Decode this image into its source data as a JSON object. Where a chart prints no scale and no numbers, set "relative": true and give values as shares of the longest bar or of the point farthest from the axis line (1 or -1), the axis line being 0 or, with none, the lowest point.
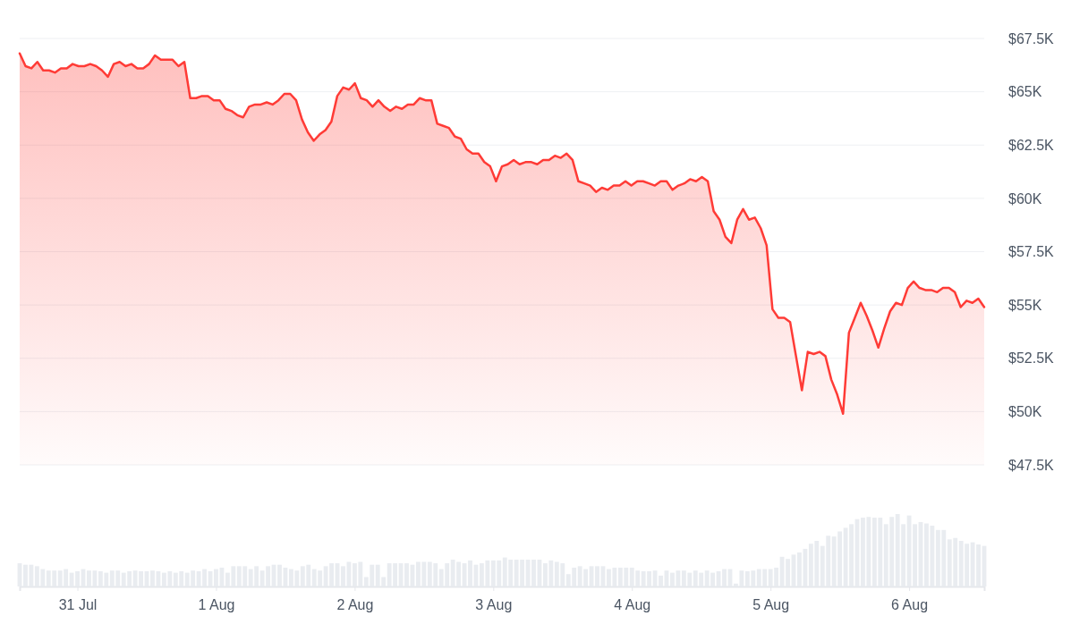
{
  "chart_data": [
    {
      "type": "area",
      "color": "#ff3b36",
      "categories": [
        null,
        null,
        null,
        null,
        null,
        null,
        null,
        null,
        null,
        null,
        null,
        null,
        null,
        null,
        null,
        null,
        null,
        null,
        null,
        null,
        null,
        null,
        null,
        null,
        null,
        null,
        null,
        null,
        null,
        null,
        null,
        null,
        null,
        null,
        null,
        null,
        null,
        null,
        null,
        null,
        null,
        null,
        null,
        null,
        null,
        null,
        null,
        null,
        null,
        null,
        null,
        null,
        null,
        null,
        null,
        null,
        null,
        null,
        null,
        null,
        null,
        null,
        null,
        null,
        null,
        null,
        null,
        null,
        null,
        null,
        null,
        null,
        null,
        null,
        null,
        null,
        null,
        null,
        null,
        null,
        null,
        null,
        null,
        null,
        null,
        null,
        null,
        null,
        null,
        null,
        null,
        null,
        null,
        null,
        null,
        null,
        null,
        null,
        null,
        null,
        null,
        null,
        null,
        null,
        null,
        null,
        null,
        null,
        null,
        null,
        null,
        null,
        null,
        null,
        null,
        null,
        null,
        null,
        null,
        null,
        null,
        null,
        null,
        null,
        null,
        null,
        null,
        null,
        null,
        null,
        null,
        null,
        null,
        null,
        null,
        null,
        null,
        null,
        null,
        null,
        null,
        null,
        null,
        null,
        null,
        null,
        null,
        null,
        null,
        null,
        null,
        null,
        null,
        null,
        null,
        null,
        null,
        null,
        null,
        null,
        null,
        null,
        null,
        null,
        null
      ],
      "values": [
        66.8,
        66.2,
        66.1,
        66.4,
        66.0,
        66.0,
        65.9,
        66.1,
        66.1,
        66.3,
        66.2,
        66.2,
        66.3,
        66.2,
        66.0,
        65.7,
        66.3,
        66.4,
        66.2,
        66.3,
        66.1,
        66.1,
        66.3,
        66.7,
        66.5,
        66.5,
        66.5,
        66.2,
        66.4,
        64.7,
        64.7,
        64.8,
        64.8,
        64.6,
        64.6,
        64.2,
        64.1,
        63.9,
        63.8,
        64.3,
        64.4,
        64.4,
        64.5,
        64.4,
        64.6,
        64.9,
        64.9,
        64.6,
        63.7,
        63.1,
        62.7,
        63.0,
        63.2,
        63.6,
        64.8,
        65.2,
        65.1,
        65.4,
        64.7,
        64.6,
        64.3,
        64.6,
        64.3,
        64.1,
        64.3,
        64.2,
        64.4,
        64.4,
        64.7,
        64.6,
        64.6,
        63.5,
        63.4,
        63.3,
        62.9,
        62.8,
        62.3,
        62.1,
        62.1,
        61.7,
        61.5,
        60.8,
        61.5,
        61.6,
        61.8,
        61.6,
        61.7,
        61.7,
        61.6,
        61.8,
        61.8,
        62.0,
        61.9,
        62.1,
        61.8,
        60.8,
        60.7,
        60.6,
        60.3,
        60.5,
        60.4,
        60.6,
        60.6,
        60.8,
        60.6,
        60.8,
        60.8,
        60.7,
        60.6,
        60.8,
        60.8,
        60.4,
        60.6,
        60.7,
        60.9,
        60.8,
        61.0,
        60.8,
        59.4,
        59.0,
        58.2,
        57.9,
        59.0,
        59.5,
        59.0,
        59.1,
        58.6,
        57.8,
        54.8,
        54.4,
        54.4,
        54.2,
        52.6,
        51.0,
        52.8,
        52.7,
        52.8,
        52.6,
        51.5,
        50.8,
        49.9,
        53.7,
        54.4,
        55.1,
        54.5,
        53.8,
        53.0,
        53.9,
        54.7,
        55.1,
        55.0,
        55.8,
        56.1,
        55.8,
        55.7,
        55.7,
        55.6,
        55.8,
        55.8,
        55.6,
        54.9,
        55.2,
        55.1,
        55.3,
        54.9
      ],
      "ylim": [
        47.5,
        67.5
      ],
      "yticks": [
        {
          "value": 47.5,
          "label": "$47.5K"
        },
        {
          "value": 50,
          "label": "$50K"
        },
        {
          "value": 52.5,
          "label": "$52.5K"
        },
        {
          "value": 55,
          "label": "$55K"
        },
        {
          "value": 57.5,
          "label": "$57.5K"
        },
        {
          "value": 60,
          "label": "$60K"
        },
        {
          "value": 62.5,
          "label": "$62.5K"
        },
        {
          "value": 65,
          "label": "$65K"
        },
        {
          "value": 67.5,
          "label": "$67.5K"
        }
      ],
      "grid": "y",
      "tick_labels": "y"
    },
    {
      "type": "bar",
      "relative": true,
      "color": "#e9ecf0",
      "categories": [
        null,
        null,
        null,
        null,
        null,
        null,
        null,
        null,
        null,
        null,
        "31 Jul",
        null,
        null,
        null,
        null,
        null,
        null,
        null,
        null,
        null,
        null,
        null,
        null,
        null,
        null,
        null,
        null,
        null,
        null,
        null,
        null,
        null,
        null,
        null,
        "1 Aug",
        null,
        null,
        null,
        null,
        null,
        null,
        null,
        null,
        null,
        null,
        null,
        null,
        null,
        null,
        null,
        null,
        null,
        null,
        null,
        null,
        null,
        null,
        null,
        "2 Aug",
        null,
        null,
        null,
        null,
        null,
        null,
        null,
        null,
        null,
        null,
        null,
        null,
        null,
        null,
        null,
        null,
        null,
        null,
        null,
        null,
        null,
        null,
        null,
        "3 Aug",
        null,
        null,
        null,
        null,
        null,
        null,
        null,
        null,
        null,
        null,
        null,
        null,
        null,
        null,
        null,
        null,
        null,
        null,
        null,
        null,
        null,
        null,
        null,
        "4 Aug",
        null,
        null,
        null,
        null,
        null,
        null,
        null,
        null,
        null,
        null,
        null,
        null,
        null,
        null,
        null,
        null,
        null,
        null,
        null,
        null,
        null,
        null,
        null,
        "5 Aug",
        null,
        null,
        null,
        null,
        null,
        null,
        null,
        null,
        null,
        null,
        null,
        null,
        null,
        null,
        null,
        null,
        null,
        null,
        null,
        null,
        null,
        null,
        null,
        "6 Aug",
        null,
        null,
        null,
        null,
        null,
        null,
        null,
        null,
        null,
        null,
        null,
        null,
        null
      ],
      "values": [
        0.32,
        0.3,
        0.3,
        0.28,
        0.24,
        0.22,
        0.22,
        0.22,
        0.24,
        0.19,
        0.21,
        0.24,
        0.22,
        0.22,
        0.21,
        0.19,
        0.22,
        0.22,
        0.19,
        0.21,
        0.22,
        0.21,
        0.21,
        0.22,
        0.21,
        0.19,
        0.21,
        0.19,
        0.21,
        0.19,
        0.22,
        0.21,
        0.24,
        0.21,
        0.24,
        0.26,
        0.19,
        0.28,
        0.28,
        0.28,
        0.24,
        0.28,
        0.22,
        0.28,
        0.3,
        0.3,
        0.26,
        0.24,
        0.22,
        0.28,
        0.3,
        0.24,
        0.22,
        0.28,
        0.32,
        0.32,
        0.28,
        0.34,
        0.32,
        0.34,
        0.13,
        0.3,
        0.3,
        0.13,
        0.32,
        0.32,
        0.32,
        0.32,
        0.3,
        0.34,
        0.34,
        0.34,
        0.32,
        0.24,
        0.32,
        0.37,
        0.34,
        0.32,
        0.36,
        0.3,
        0.32,
        0.36,
        0.36,
        0.36,
        0.4,
        0.37,
        0.37,
        0.37,
        0.37,
        0.37,
        0.37,
        0.32,
        0.36,
        0.34,
        0.32,
        0.17,
        0.26,
        0.28,
        0.24,
        0.28,
        0.28,
        0.28,
        0.24,
        0.26,
        0.26,
        0.26,
        0.26,
        0.22,
        0.21,
        0.21,
        0.22,
        0.15,
        0.22,
        0.19,
        0.22,
        0.22,
        0.19,
        0.22,
        0.19,
        0.22,
        0.19,
        0.21,
        0.24,
        0.24,
        0.04,
        0.22,
        0.21,
        0.22,
        0.24,
        0.24,
        0.24,
        0.26,
        0.41,
        0.38,
        0.44,
        0.47,
        0.52,
        0.59,
        0.63,
        0.56,
        0.7,
        0.69,
        0.76,
        0.81,
        0.86,
        0.93,
        0.95,
        0.96,
        0.95,
        0.95,
        0.86,
        0.96,
        1,
        0.86,
        0.98,
        0.86,
        0.89,
        0.87,
        0.84,
        0.78,
        0.78,
        0.65,
        0.67,
        0.63,
        0.59,
        0.61,
        0.58,
        0.56
      ],
      "tick_labels": "x"
    }
  ]
}
